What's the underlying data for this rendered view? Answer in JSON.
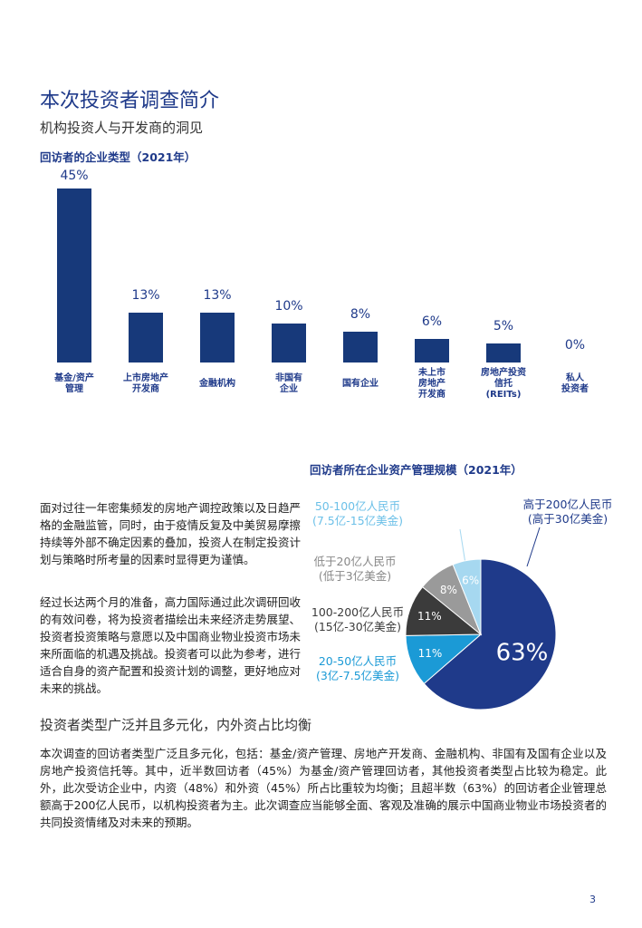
{
  "header": {
    "title": "本次投资者调查简介",
    "subtitle": "机构投资人与开发商的洞见"
  },
  "chart_data": [
    {
      "type": "bar",
      "title": "回访者的企业类型（2021年）",
      "categories": [
        "基金/资产\n管理",
        "上市房地产\n开发商",
        "金融机构",
        "非国有\n企业",
        "国有企业",
        "未上市\n房地产\n开发商",
        "房地产投资\n信托\n(REITs)",
        "私人\n投资者"
      ],
      "values": [
        45,
        13,
        13,
        10,
        8,
        6,
        5,
        0
      ],
      "value_labels": [
        "45%",
        "13%",
        "13%",
        "10%",
        "8%",
        "6%",
        "5%",
        "0%"
      ],
      "color": "#17397a"
    },
    {
      "type": "pie",
      "title": "回访者所在企业资产管理规模（2021年）",
      "categories": [
        "高于200亿人民币\n(高于30亿美金)",
        "20-50亿人民币\n(3亿-7.5亿美金)",
        "100-200亿人民币\n(15亿-30亿美金)",
        "低于20亿人民币\n(低于3亿美金)",
        "50-100亿人民币\n(7.5亿-15亿美金)"
      ],
      "values": [
        63,
        11,
        11,
        8,
        6
      ],
      "value_labels": [
        "63%",
        "11%",
        "11%",
        "8%",
        "6%"
      ],
      "colors": [
        "#1f3a8a",
        "#1b9ad6",
        "#3b3b3b",
        "#9a9a9a",
        "#a6d8f0"
      ]
    }
  ],
  "body": {
    "paragraphs": [
      "面对过往一年密集频发的房地产调控政策以及日趋严格的金融监管，同时，由于疫情反复及中美贸易摩擦持续等外部不确定因素的叠加，投资人在制定投资计划与策略时所考量的因素时显得更为谨慎。",
      "经过长达两个月的准备，高力国际通过此次调研回收的有效问卷，将为投资者描绘出未来经济走势展望、投资者投资策略与意愿以及中国商业物业投资市场未来所面临的机遇及挑战。投资者可以此为参考，进行适合自身的资产配置和投资计划的调整，更好地应对未来的挑战。"
    ],
    "heading": "投资者类型广泛并且多元化，内外资占比均衡",
    "text": "本次调查的回访者类型广泛且多元化，包括：基金/资产管理、房地产开发商、金融机构、非国有及国有企业以及房地产投资信托等。其中，近半数回访者（45%）为基金/资产管理回访者，其他投资者类型占比较为稳定。此外，此次受访企业中，内资（48%）和外资（45%）所占比重较为均衡；且超半数（63%）的回访者企业管理总额高于200亿人民币，以机构投资者为主。此次调查应当能够全面、客观及准确的展示中国商业物业市场投资者的共同投资情绪及对未来的预期。"
  },
  "page_number": "3"
}
